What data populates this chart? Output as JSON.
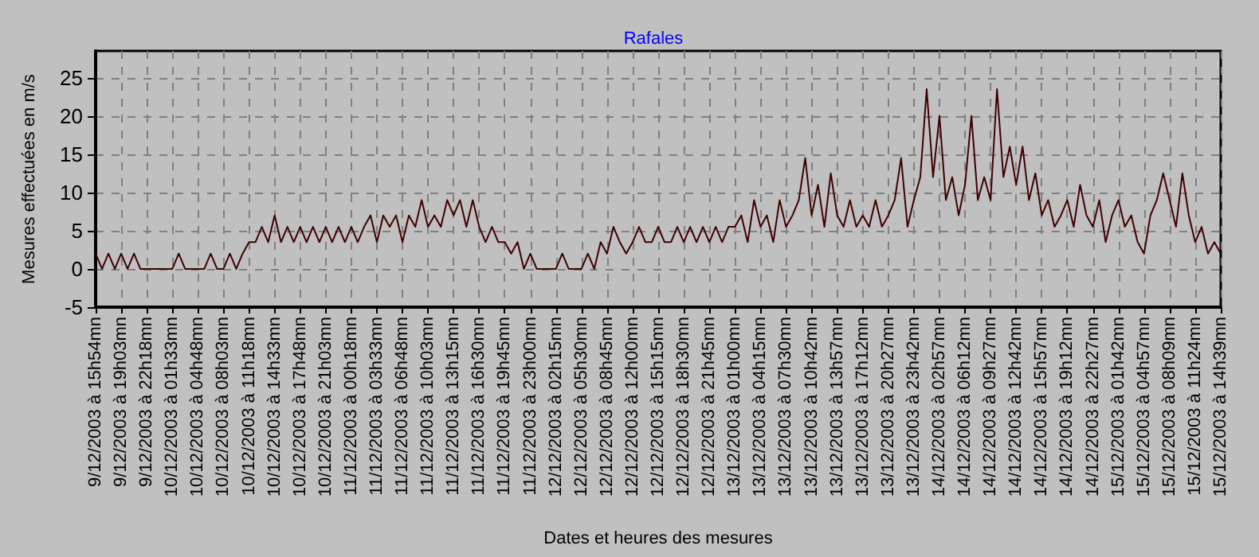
{
  "chart_data": {
    "type": "line",
    "title": "Rafales",
    "xlabel": "Dates et heures des mesures",
    "ylabel": "Mesures effectuées en m/s",
    "categories": [
      "9/12/2003 à 15h54mn",
      null,
      null,
      null,
      "9/12/2003 à 19h03mn",
      null,
      null,
      null,
      "9/12/2003 à 22h18mn",
      null,
      null,
      null,
      "10/12/2003 à 01h33mn",
      null,
      null,
      null,
      "10/12/2003 à 04h48mn",
      null,
      null,
      null,
      "10/12/2003 à 08h03mn",
      null,
      null,
      null,
      "10/12/2003 à 11h18mn",
      null,
      null,
      null,
      "10/12/2003 à 14h33mn",
      null,
      null,
      null,
      "10/12/2003 à 17h48mn",
      null,
      null,
      null,
      "10/12/2003 à 21h03mn",
      null,
      null,
      null,
      "11/12/2003 à 00h18mn",
      null,
      null,
      null,
      "11/12/2003 à 03h33mn",
      null,
      null,
      null,
      "11/12/2003 à 06h48mn",
      null,
      null,
      null,
      "11/12/2003 à 10h03mn",
      null,
      null,
      null,
      "11/12/2003 à 13h15mn",
      null,
      null,
      null,
      "11/12/2003 à 16h30mn",
      null,
      null,
      null,
      "11/12/2003 à 19h45mn",
      null,
      null,
      null,
      "11/12/2003 à 23h00mn",
      null,
      null,
      null,
      "12/12/2003 à 02h15mn",
      null,
      null,
      null,
      "12/12/2003 à 05h30mn",
      null,
      null,
      null,
      "12/12/2003 à 08h45mn",
      null,
      null,
      null,
      "12/12/2003 à 12h00mn",
      null,
      null,
      null,
      "12/12/2003 à 15h15mn",
      null,
      null,
      null,
      "12/12/2003 à 18h30mn",
      null,
      null,
      null,
      "12/12/2003 à 21h45mn",
      null,
      null,
      null,
      "13/12/2003 à 01h00mn",
      null,
      null,
      null,
      "13/12/2003 à 04h15mn",
      null,
      null,
      null,
      "13/12/2003 à 07h30mn",
      null,
      null,
      null,
      "13/12/2003 à 10h42mn",
      null,
      null,
      null,
      "13/12/2003 à 13h57mn",
      null,
      null,
      null,
      "13/12/2003 à 17h12mn",
      null,
      null,
      null,
      "13/12/2003 à 20h27mn",
      null,
      null,
      null,
      "13/12/2003 à 23h42mn",
      null,
      null,
      null,
      "14/12/2003 à 02h57mn",
      null,
      null,
      null,
      "14/12/2003 à 06h12mn",
      null,
      null,
      null,
      "14/12/2003 à 09h27mn",
      null,
      null,
      null,
      "14/12/2003 à 12h42mn",
      null,
      null,
      null,
      "14/12/2003 à 15h57mn",
      null,
      null,
      null,
      "14/12/2003 à 19h12mn",
      null,
      null,
      null,
      "14/12/2003 à 22h27mn",
      null,
      null,
      null,
      "15/12/2003 à 01h42mn",
      null,
      null,
      null,
      "15/12/2003 à 04h57mn",
      null,
      null,
      null,
      "15/12/2003 à 08h09mn",
      null,
      null,
      null,
      "15/12/2003 à 11h24mn",
      null,
      null,
      null,
      "15/12/2003 à 14h39mn"
    ],
    "series": [
      {
        "color": "#400000",
        "values": [
          2,
          0,
          2,
          0,
          2,
          0,
          2,
          0,
          0,
          0,
          0,
          0,
          0,
          2,
          0,
          0,
          0,
          0,
          2,
          0,
          0,
          2,
          0,
          2,
          3.5,
          3.5,
          5.5,
          3.5,
          7,
          3.5,
          5.5,
          3.5,
          5.5,
          3.5,
          5.5,
          3.5,
          5.5,
          3.5,
          5.5,
          3.5,
          5.5,
          3.5,
          5.5,
          7,
          3.5,
          7,
          5.5,
          7,
          3.5,
          7,
          5.5,
          9,
          5.5,
          7,
          5.5,
          9,
          7,
          9,
          5.5,
          9,
          5.5,
          3.5,
          5.5,
          3.5,
          3.5,
          2,
          3.5,
          0,
          2,
          0,
          0,
          0,
          0,
          2,
          0,
          0,
          0,
          2,
          0,
          3.5,
          2,
          5.5,
          3.5,
          2,
          3.5,
          5.5,
          3.5,
          3.5,
          5.5,
          3.5,
          3.5,
          5.5,
          3.5,
          5.5,
          3.5,
          5.5,
          3.5,
          5.5,
          3.5,
          5.5,
          5.5,
          7,
          3.5,
          9,
          5.5,
          7,
          3.5,
          9,
          5.5,
          7,
          9,
          14.5,
          7,
          11,
          5.5,
          12.5,
          7,
          5.5,
          9,
          5.5,
          7,
          5.5,
          9,
          5.5,
          7,
          9,
          14.5,
          5.5,
          9,
          12,
          23.5,
          12,
          20,
          9,
          12,
          7,
          11,
          20,
          9,
          12,
          9,
          23.5,
          12,
          16,
          11,
          16,
          9,
          12.5,
          7,
          9,
          5.5,
          7,
          9,
          5.5,
          11,
          7,
          5.5,
          9,
          3.5,
          7,
          9,
          5.5,
          7,
          3.5,
          2,
          7,
          9,
          12.5,
          9,
          5.5,
          12.5,
          7,
          3.5,
          5.5,
          2,
          3.5,
          2
        ]
      }
    ],
    "ylim": [
      -5,
      28.5
    ],
    "yticks": [
      -5,
      0,
      5,
      10,
      15,
      20,
      25
    ],
    "grid": true,
    "marker": "none",
    "line_style": "solid"
  }
}
